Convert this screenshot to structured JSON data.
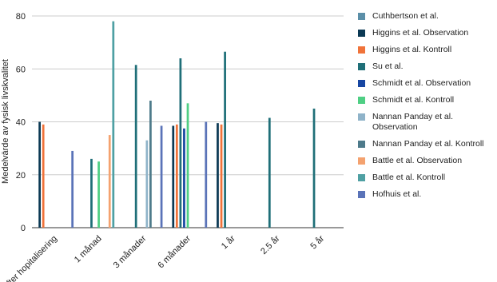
{
  "chart_data": {
    "type": "bar",
    "y_label": "Medelvärde av fysisk livskvalitet",
    "categories": [
      "Efter hopitalisering",
      "1 månad",
      "3 månader",
      "6 månader",
      "1 år",
      "2.5 år",
      "5 år"
    ],
    "series": [
      {
        "name": "Cuthbertson et al.",
        "color": "#5b8fa8",
        "values": [
          null,
          null,
          null,
          null,
          null,
          null,
          null
        ]
      },
      {
        "name": "Higgins et al. Observation",
        "color": "#0b3954",
        "values": [
          40,
          null,
          null,
          38.5,
          39.5,
          null,
          null
        ]
      },
      {
        "name": "Higgins et al. Kontroll",
        "color": "#f0733a",
        "values": [
          39,
          null,
          null,
          39,
          39,
          null,
          null
        ]
      },
      {
        "name": "Su et al.",
        "color": "#1f6f78",
        "values": [
          null,
          26,
          61.5,
          64,
          66.5,
          41.5,
          45
        ]
      },
      {
        "name": "Schmidt et al. Observation",
        "color": "#1746a2",
        "values": [
          null,
          null,
          null,
          37.5,
          null,
          null,
          null
        ]
      },
      {
        "name": "Schmidt et al. Kontroll",
        "color": "#4fcf84",
        "values": [
          null,
          25,
          null,
          47,
          null,
          null,
          null
        ]
      },
      {
        "name": "Nannan Panday et al. Observation",
        "color": "#8fb3c9",
        "values": [
          null,
          null,
          33,
          null,
          null,
          null,
          null
        ]
      },
      {
        "name": "Nannan Panday et al. Kontroll",
        "color": "#4d7a8a",
        "values": [
          null,
          null,
          48,
          null,
          null,
          null,
          null
        ]
      },
      {
        "name": "Battle et al. Observation",
        "color": "#f4a26f",
        "values": [
          null,
          35,
          null,
          null,
          null,
          null,
          null
        ]
      },
      {
        "name": "Battle et al. Kontroll",
        "color": "#4fa0a3",
        "values": [
          null,
          78,
          null,
          null,
          null,
          null,
          null
        ]
      },
      {
        "name": "Hofhuis et al.",
        "color": "#5a73b8",
        "values": [
          29,
          null,
          38.5,
          40,
          null,
          null,
          null
        ]
      }
    ],
    "ylim": [
      0,
      80
    ],
    "yticks": [
      0,
      20,
      40,
      60,
      80
    ],
    "grid": true
  }
}
